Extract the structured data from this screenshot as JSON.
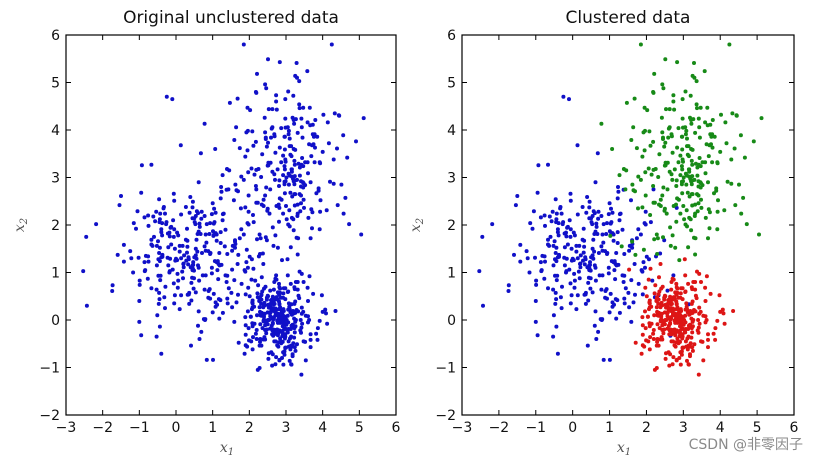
{
  "watermark": "CSDN @非零因子",
  "chart_data": [
    {
      "type": "scatter",
      "title": "Original unclustered data",
      "xlabel": "x",
      "xlabel_sub": "1",
      "ylabel": "x",
      "ylabel_sub": "2",
      "xlim": [
        -3,
        6
      ],
      "ylim": [
        -2,
        6
      ],
      "xticks": [
        -3,
        -2,
        -1,
        0,
        1,
        2,
        3,
        4,
        5,
        6
      ],
      "yticks": [
        -2,
        -1,
        0,
        1,
        2,
        3,
        4,
        5,
        6
      ],
      "grid": false,
      "legend": "none",
      "series": [
        {
          "color": "#1010c8",
          "x": [],
          "y": []
        }
      ]
    },
    {
      "type": "scatter",
      "title": "Clustered data",
      "xlabel": "x",
      "xlabel_sub": "1",
      "ylabel": "x",
      "ylabel_sub": "2",
      "xlim": [
        -3,
        6
      ],
      "ylim": [
        -2,
        6
      ],
      "xticks": [
        -3,
        -2,
        -1,
        0,
        1,
        2,
        3,
        4,
        5,
        6
      ],
      "yticks": [
        -2,
        -1,
        0,
        1,
        2,
        3,
        4,
        5,
        6
      ],
      "grid": false,
      "legend": "none",
      "series": [
        {
          "color": "#1010c8",
          "x": [],
          "y": []
        },
        {
          "color": "#178a17",
          "x": [],
          "y": []
        },
        {
          "color": "#dd1515",
          "x": [],
          "y": []
        }
      ]
    }
  ]
}
